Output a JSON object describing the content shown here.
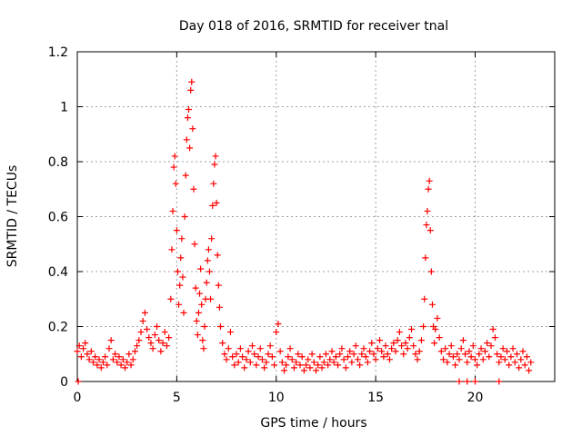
{
  "chart_data": {
    "type": "scatter",
    "title": "Day 018 of 2016, SRMTID for receiver tnal",
    "xlabel": "GPS time / hours",
    "ylabel": "SRMTID / TECUs",
    "xlim": [
      0,
      24
    ],
    "ylim": [
      0,
      1.2
    ],
    "xticks": [
      0,
      5,
      10,
      15,
      20
    ],
    "xtick_labels": [
      "0",
      "5",
      "10",
      "15",
      "20"
    ],
    "yticks": [
      0,
      0.2,
      0.4,
      0.6,
      0.8,
      1,
      1.2
    ],
    "ytick_labels": [
      "0",
      "0.2",
      "0.4",
      "0.6",
      "0.8",
      "1",
      "1.2"
    ],
    "grid": true,
    "marker": "+",
    "series": [
      {
        "name": "SRMTID",
        "color": "#ff0000",
        "points": [
          [
            0.0,
            0.11
          ],
          [
            0.1,
            0.13
          ],
          [
            0.2,
            0.09
          ],
          [
            0.3,
            0.12
          ],
          [
            0.4,
            0.14
          ],
          [
            0.5,
            0.1
          ],
          [
            0.6,
            0.08
          ],
          [
            0.7,
            0.11
          ],
          [
            0.8,
            0.07
          ],
          [
            0.9,
            0.09
          ],
          [
            1.0,
            0.06
          ],
          [
            1.1,
            0.08
          ],
          [
            1.2,
            0.05
          ],
          [
            1.3,
            0.07
          ],
          [
            1.4,
            0.09
          ],
          [
            1.5,
            0.06
          ],
          [
            1.6,
            0.12
          ],
          [
            1.7,
            0.15
          ],
          [
            1.8,
            0.08
          ],
          [
            1.9,
            0.1
          ],
          [
            2.0,
            0.07
          ],
          [
            2.1,
            0.09
          ],
          [
            2.2,
            0.06
          ],
          [
            2.3,
            0.08
          ],
          [
            2.4,
            0.05
          ],
          [
            2.5,
            0.07
          ],
          [
            2.6,
            0.1
          ],
          [
            2.7,
            0.06
          ],
          [
            2.8,
            0.08
          ],
          [
            2.9,
            0.11
          ],
          [
            3.0,
            0.13
          ],
          [
            3.1,
            0.15
          ],
          [
            3.2,
            0.18
          ],
          [
            3.3,
            0.22
          ],
          [
            3.4,
            0.25
          ],
          [
            3.5,
            0.19
          ],
          [
            3.6,
            0.16
          ],
          [
            3.7,
            0.14
          ],
          [
            3.8,
            0.12
          ],
          [
            3.9,
            0.17
          ],
          [
            4.0,
            0.2
          ],
          [
            4.1,
            0.15
          ],
          [
            4.2,
            0.11
          ],
          [
            4.3,
            0.14
          ],
          [
            4.4,
            0.18
          ],
          [
            4.5,
            0.13
          ],
          [
            4.6,
            0.16
          ],
          [
            4.7,
            0.3
          ],
          [
            4.75,
            0.48
          ],
          [
            4.8,
            0.62
          ],
          [
            4.85,
            0.78
          ],
          [
            4.9,
            0.82
          ],
          [
            4.95,
            0.72
          ],
          [
            5.0,
            0.55
          ],
          [
            5.05,
            0.4
          ],
          [
            5.1,
            0.28
          ],
          [
            5.15,
            0.35
          ],
          [
            5.2,
            0.45
          ],
          [
            5.25,
            0.52
          ],
          [
            5.3,
            0.38
          ],
          [
            5.35,
            0.25
          ],
          [
            5.4,
            0.6
          ],
          [
            5.45,
            0.75
          ],
          [
            5.5,
            0.88
          ],
          [
            5.55,
            0.96
          ],
          [
            5.6,
            0.99
          ],
          [
            5.65,
            0.85
          ],
          [
            5.7,
            1.06
          ],
          [
            5.75,
            1.09
          ],
          [
            5.8,
            0.92
          ],
          [
            5.85,
            0.7
          ],
          [
            5.9,
            0.5
          ],
          [
            5.95,
            0.34
          ],
          [
            6.0,
            0.22
          ],
          [
            6.05,
            0.17
          ],
          [
            6.1,
            0.25
          ],
          [
            6.15,
            0.32
          ],
          [
            6.2,
            0.41
          ],
          [
            6.25,
            0.28
          ],
          [
            6.3,
            0.15
          ],
          [
            6.35,
            0.12
          ],
          [
            6.4,
            0.2
          ],
          [
            6.45,
            0.3
          ],
          [
            6.5,
            0.36
          ],
          [
            6.55,
            0.44
          ],
          [
            6.6,
            0.48
          ],
          [
            6.65,
            0.4
          ],
          [
            6.7,
            0.3
          ],
          [
            6.75,
            0.52
          ],
          [
            6.8,
            0.64
          ],
          [
            6.85,
            0.72
          ],
          [
            6.9,
            0.79
          ],
          [
            6.95,
            0.82
          ],
          [
            7.0,
            0.65
          ],
          [
            7.05,
            0.46
          ],
          [
            7.1,
            0.35
          ],
          [
            7.15,
            0.27
          ],
          [
            7.2,
            0.2
          ],
          [
            7.3,
            0.14
          ],
          [
            7.4,
            0.1
          ],
          [
            7.5,
            0.08
          ],
          [
            7.6,
            0.12
          ],
          [
            7.7,
            0.18
          ],
          [
            7.8,
            0.09
          ],
          [
            7.9,
            0.06
          ],
          [
            8.0,
            0.1
          ],
          [
            8.1,
            0.07
          ],
          [
            8.2,
            0.12
          ],
          [
            8.3,
            0.09
          ],
          [
            8.4,
            0.05
          ],
          [
            8.5,
            0.08
          ],
          [
            8.6,
            0.11
          ],
          [
            8.7,
            0.07
          ],
          [
            8.8,
            0.13
          ],
          [
            8.9,
            0.1
          ],
          [
            9.0,
            0.06
          ],
          [
            9.1,
            0.09
          ],
          [
            9.2,
            0.12
          ],
          [
            9.3,
            0.08
          ],
          [
            9.4,
            0.05
          ],
          [
            9.5,
            0.07
          ],
          [
            9.6,
            0.1
          ],
          [
            9.7,
            0.13
          ],
          [
            9.8,
            0.09
          ],
          [
            9.9,
            0.06
          ],
          [
            10.0,
            0.18
          ],
          [
            10.1,
            0.21
          ],
          [
            10.2,
            0.11
          ],
          [
            10.3,
            0.07
          ],
          [
            10.4,
            0.04
          ],
          [
            10.5,
            0.06
          ],
          [
            10.6,
            0.09
          ],
          [
            10.7,
            0.12
          ],
          [
            10.8,
            0.08
          ],
          [
            10.9,
            0.05
          ],
          [
            11.0,
            0.07
          ],
          [
            11.1,
            0.1
          ],
          [
            11.2,
            0.06
          ],
          [
            11.3,
            0.09
          ],
          [
            11.4,
            0.04
          ],
          [
            11.5,
            0.06
          ],
          [
            11.6,
            0.08
          ],
          [
            11.7,
            0.05
          ],
          [
            11.8,
            0.1
          ],
          [
            11.9,
            0.07
          ],
          [
            12.0,
            0.04
          ],
          [
            12.1,
            0.06
          ],
          [
            12.2,
            0.09
          ],
          [
            12.3,
            0.05
          ],
          [
            12.4,
            0.07
          ],
          [
            12.5,
            0.1
          ],
          [
            12.6,
            0.06
          ],
          [
            12.7,
            0.08
          ],
          [
            12.8,
            0.11
          ],
          [
            12.9,
            0.07
          ],
          [
            13.0,
            0.09
          ],
          [
            13.1,
            0.06
          ],
          [
            13.2,
            0.1
          ],
          [
            13.3,
            0.12
          ],
          [
            13.4,
            0.08
          ],
          [
            13.5,
            0.05
          ],
          [
            13.6,
            0.09
          ],
          [
            13.7,
            0.11
          ],
          [
            13.8,
            0.07
          ],
          [
            13.9,
            0.1
          ],
          [
            14.0,
            0.13
          ],
          [
            14.1,
            0.08
          ],
          [
            14.2,
            0.06
          ],
          [
            14.3,
            0.1
          ],
          [
            14.4,
            0.12
          ],
          [
            14.5,
            0.09
          ],
          [
            14.6,
            0.07
          ],
          [
            14.7,
            0.11
          ],
          [
            14.8,
            0.14
          ],
          [
            14.9,
            0.1
          ],
          [
            15.0,
            0.08
          ],
          [
            15.1,
            0.12
          ],
          [
            15.2,
            0.15
          ],
          [
            15.3,
            0.11
          ],
          [
            15.4,
            0.09
          ],
          [
            15.5,
            0.13
          ],
          [
            15.6,
            0.1
          ],
          [
            15.7,
            0.08
          ],
          [
            15.8,
            0.12
          ],
          [
            15.9,
            0.14
          ],
          [
            16.0,
            0.11
          ],
          [
            16.1,
            0.15
          ],
          [
            16.2,
            0.18
          ],
          [
            16.3,
            0.13
          ],
          [
            16.4,
            0.1
          ],
          [
            16.5,
            0.14
          ],
          [
            16.6,
            0.12
          ],
          [
            16.7,
            0.16
          ],
          [
            16.8,
            0.19
          ],
          [
            16.9,
            0.13
          ],
          [
            17.0,
            0.1
          ],
          [
            17.1,
            0.08
          ],
          [
            17.2,
            0.11
          ],
          [
            17.3,
            0.15
          ],
          [
            17.4,
            0.2
          ],
          [
            17.45,
            0.3
          ],
          [
            17.5,
            0.45
          ],
          [
            17.55,
            0.57
          ],
          [
            17.6,
            0.62
          ],
          [
            17.65,
            0.7
          ],
          [
            17.7,
            0.73
          ],
          [
            17.75,
            0.55
          ],
          [
            17.8,
            0.4
          ],
          [
            17.85,
            0.28
          ],
          [
            17.9,
            0.2
          ],
          [
            17.95,
            0.14
          ],
          [
            18.0,
            0.19
          ],
          [
            18.1,
            0.23
          ],
          [
            18.2,
            0.16
          ],
          [
            18.3,
            0.11
          ],
          [
            18.4,
            0.08
          ],
          [
            18.5,
            0.12
          ],
          [
            18.6,
            0.07
          ],
          [
            18.7,
            0.1
          ],
          [
            18.8,
            0.13
          ],
          [
            18.9,
            0.09
          ],
          [
            19.0,
            0.06
          ],
          [
            19.1,
            0.1
          ],
          [
            19.2,
            0.08
          ],
          [
            19.3,
            0.12
          ],
          [
            19.4,
            0.15
          ],
          [
            19.5,
            0.1
          ],
          [
            19.6,
            0.07
          ],
          [
            19.7,
            0.11
          ],
          [
            19.8,
            0.09
          ],
          [
            19.9,
            0.13
          ],
          [
            20.0,
            0.08
          ],
          [
            20.1,
            0.06
          ],
          [
            20.2,
            0.1
          ],
          [
            20.3,
            0.12
          ],
          [
            20.4,
            0.08
          ],
          [
            20.5,
            0.11
          ],
          [
            20.6,
            0.14
          ],
          [
            20.7,
            0.09
          ],
          [
            20.8,
            0.13
          ],
          [
            20.9,
            0.19
          ],
          [
            21.0,
            0.16
          ],
          [
            21.1,
            0.1
          ],
          [
            21.2,
            0.07
          ],
          [
            21.3,
            0.09
          ],
          [
            21.4,
            0.12
          ],
          [
            21.5,
            0.08
          ],
          [
            21.6,
            0.11
          ],
          [
            21.7,
            0.06
          ],
          [
            21.8,
            0.09
          ],
          [
            21.9,
            0.12
          ],
          [
            22.0,
            0.07
          ],
          [
            22.1,
            0.1
          ],
          [
            22.2,
            0.05
          ],
          [
            22.3,
            0.08
          ],
          [
            22.4,
            0.11
          ],
          [
            22.5,
            0.06
          ],
          [
            22.6,
            0.09
          ],
          [
            22.7,
            0.04
          ],
          [
            22.8,
            0.07
          ],
          [
            0.05,
            0.0
          ],
          [
            19.2,
            0.0
          ],
          [
            19.6,
            0.0
          ],
          [
            20.0,
            0.0
          ],
          [
            21.2,
            0.0
          ]
        ]
      }
    ]
  }
}
